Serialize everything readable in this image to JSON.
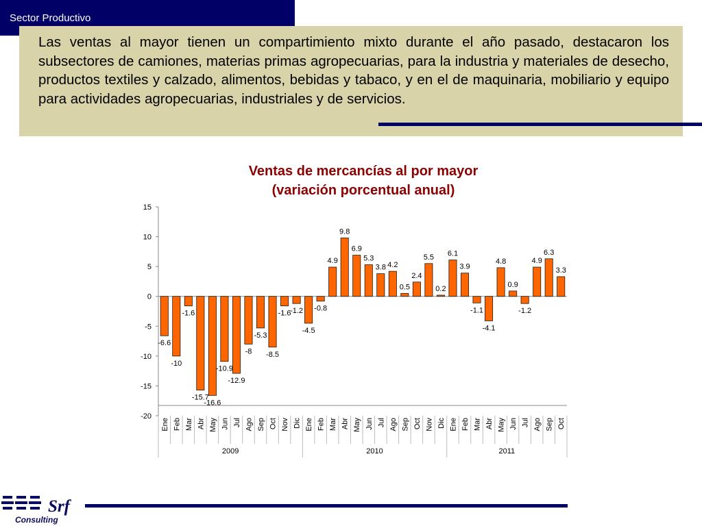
{
  "header": {
    "section_label": "Sector Productivo"
  },
  "summary": {
    "paragraph": "Las ventas al mayor tienen un compartimiento mixto durante el año pasado, destacaron los subsectores de camiones, materias primas agropecuarias, para la industria y materiales de desecho, productos textiles y calzado, alimentos, bebidas y tabaco, y en el de maquinaria, mobiliario y equipo para actividades agropecuarias, industriales y de servicios."
  },
  "logo": {
    "brand": "Srf",
    "subtitle": "Consulting"
  },
  "colors": {
    "bar_fill": "#ff6600",
    "bar_stroke": "#1a1a1a",
    "title": "#8b0000",
    "accent": "#000066",
    "band": "#d9d3a9"
  },
  "chart_data": {
    "type": "bar",
    "title_line1": "Ventas de mercancías al por mayor",
    "title_line2": "(variación porcentual anual)",
    "ylim": [
      -20,
      15
    ],
    "yticks": [
      15,
      10,
      5,
      0,
      -5,
      -10,
      -15,
      -20
    ],
    "grid": false,
    "months": [
      "Ene",
      "Feb",
      "Mar",
      "Abr",
      "May",
      "Jun",
      "Jul",
      "Ago",
      "Sep",
      "Oct",
      "Nov",
      "Dic",
      "Ene",
      "Feb",
      "Mar",
      "Abr",
      "May",
      "Jun",
      "Jul",
      "Ago",
      "Sep",
      "Oct",
      "Nov",
      "Dic",
      "Ene",
      "Feb",
      "Mar",
      "Abr",
      "May",
      "Jun",
      "Jul",
      "Ago",
      "Sep",
      "Oct"
    ],
    "years": [
      {
        "label": "2009",
        "count": 12
      },
      {
        "label": "2010",
        "count": 12
      },
      {
        "label": "2011",
        "count": 10
      }
    ],
    "values": [
      -6.6,
      -10,
      -1.6,
      -15.7,
      -16.6,
      -10.9,
      -12.9,
      -8,
      -5.3,
      -8.5,
      -1.6,
      -1.2,
      -4.5,
      -0.8,
      4.9,
      9.8,
      6.9,
      5.3,
      3.8,
      4.2,
      0.5,
      2.4,
      5.5,
      0.2,
      6.1,
      3.9,
      -1.1,
      -4.1,
      4.8,
      0.9,
      -1.2,
      4.9,
      6.3,
      3.3
    ]
  }
}
